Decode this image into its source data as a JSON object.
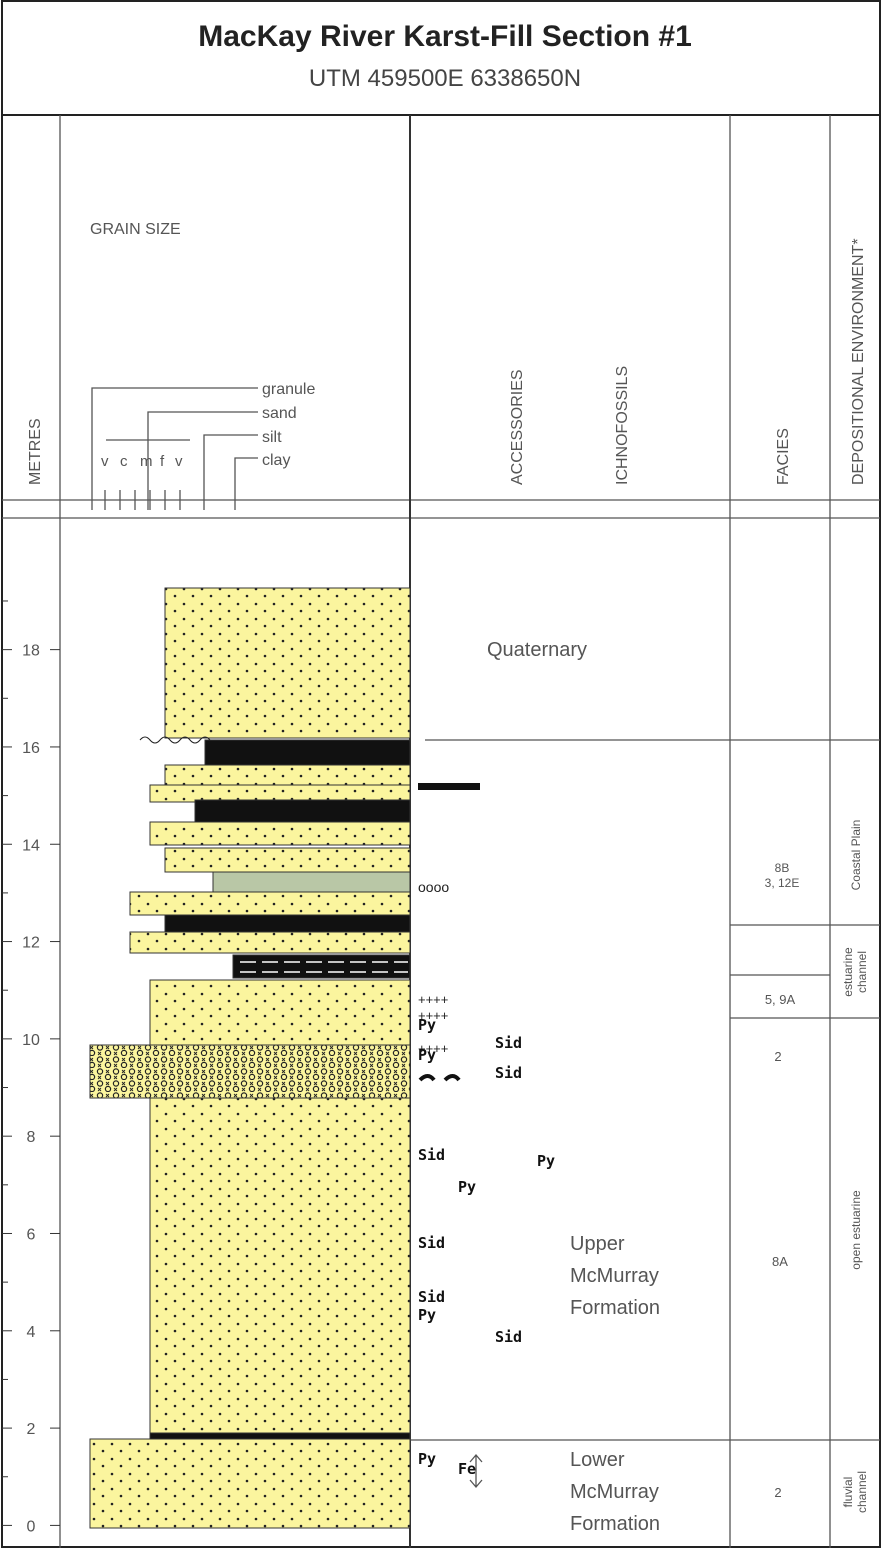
{
  "header": {
    "title": "MacKay River Karst-Fill Section #1",
    "subtitle": "UTM 459500E  6338650N"
  },
  "columns": {
    "metres": "METRES",
    "grain_size": "GRAIN SIZE",
    "accessories": "ACCESSORIES",
    "ichnofossils": "ICHNOFOSSILS",
    "facies": "FACIES",
    "environment": "DEPOSITIONAL ENVIRONMENT*"
  },
  "grain_legend": {
    "classes": [
      "granule",
      "sand",
      "silt",
      "clay"
    ],
    "sand_grades": [
      "v",
      "c",
      "m",
      "f",
      "v"
    ]
  },
  "metres_axis": {
    "ylim": [
      -0.3,
      20.5
    ],
    "ticks": [
      0,
      2,
      4,
      6,
      8,
      10,
      12,
      14,
      16,
      18
    ]
  },
  "units": [
    [
      "Quaternary"
    ],
    [
      "Upper",
      "McMurray",
      "Formation"
    ],
    [
      "Lower",
      "McMurray",
      "Formation"
    ]
  ],
  "accessories": [
    "Py",
    "Sid",
    "Py",
    "Sid",
    "Sid",
    "Py",
    "Py",
    "Sid",
    "Sid",
    "Py",
    "Sid",
    "Py",
    "Fe"
  ],
  "facies": [
    [
      "8B",
      "3, 12E"
    ],
    [
      "5, 9A"
    ],
    [
      "2"
    ],
    [
      "8A"
    ],
    [
      "2"
    ]
  ],
  "environments": [
    [
      "Coastal Plain"
    ],
    [
      "estuarine",
      "channel"
    ],
    [
      "open estuarine"
    ],
    [
      "fluvial",
      "channel"
    ]
  ]
}
